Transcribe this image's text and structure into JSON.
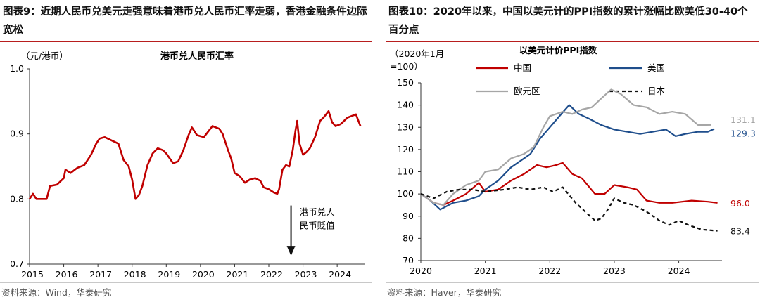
{
  "left": {
    "figure_title": "图表9：近期人民币兑美元走强意味着港币兑人民币汇率走弱，香港金融条件边际宽松",
    "source": "资料来源：Wind，华泰研究",
    "chart_data": {
      "type": "line",
      "title": "港币兑人民币汇率",
      "ylabel": "（元/港币）",
      "ylim": [
        0.7,
        1.0
      ],
      "yticks": [
        "0.7",
        "0.8",
        "0.9",
        "1.0"
      ],
      "xlim": [
        2015,
        2024.8
      ],
      "xticks": [
        "2015",
        "2016",
        "2017",
        "2018",
        "2019",
        "2020",
        "2021",
        "2022",
        "2023",
        "2024"
      ],
      "series": [
        {
          "color": "#c00000",
          "points": [
            [
              2015.0,
              0.8
            ],
            [
              2015.1,
              0.808
            ],
            [
              2015.2,
              0.8
            ],
            [
              2015.5,
              0.8
            ],
            [
              2015.6,
              0.82
            ],
            [
              2015.8,
              0.822
            ],
            [
              2016.0,
              0.832
            ],
            [
              2016.05,
              0.845
            ],
            [
              2016.2,
              0.84
            ],
            [
              2016.4,
              0.848
            ],
            [
              2016.6,
              0.852
            ],
            [
              2016.8,
              0.868
            ],
            [
              2016.95,
              0.885
            ],
            [
              2017.05,
              0.893
            ],
            [
              2017.2,
              0.895
            ],
            [
              2017.4,
              0.89
            ],
            [
              2017.6,
              0.885
            ],
            [
              2017.75,
              0.86
            ],
            [
              2017.9,
              0.85
            ],
            [
              2018.0,
              0.83
            ],
            [
              2018.1,
              0.8
            ],
            [
              2018.2,
              0.806
            ],
            [
              2018.3,
              0.82
            ],
            [
              2018.45,
              0.852
            ],
            [
              2018.6,
              0.87
            ],
            [
              2018.75,
              0.878
            ],
            [
              2018.9,
              0.875
            ],
            [
              2019.0,
              0.87
            ],
            [
              2019.2,
              0.855
            ],
            [
              2019.35,
              0.858
            ],
            [
              2019.5,
              0.875
            ],
            [
              2019.65,
              0.898
            ],
            [
              2019.75,
              0.91
            ],
            [
              2019.9,
              0.898
            ],
            [
              2020.1,
              0.895
            ],
            [
              2020.35,
              0.912
            ],
            [
              2020.55,
              0.908
            ],
            [
              2020.65,
              0.9
            ],
            [
              2020.8,
              0.876
            ],
            [
              2020.9,
              0.862
            ],
            [
              2021.0,
              0.84
            ],
            [
              2021.15,
              0.835
            ],
            [
              2021.3,
              0.825
            ],
            [
              2021.45,
              0.83
            ],
            [
              2021.6,
              0.832
            ],
            [
              2021.75,
              0.828
            ],
            [
              2021.85,
              0.818
            ],
            [
              2022.0,
              0.815
            ],
            [
              2022.15,
              0.81
            ],
            [
              2022.25,
              0.808
            ],
            [
              2022.3,
              0.815
            ],
            [
              2022.4,
              0.845
            ],
            [
              2022.5,
              0.852
            ],
            [
              2022.6,
              0.85
            ],
            [
              2022.7,
              0.875
            ],
            [
              2022.78,
              0.905
            ],
            [
              2022.83,
              0.92
            ],
            [
              2022.9,
              0.885
            ],
            [
              2023.0,
              0.868
            ],
            [
              2023.1,
              0.872
            ],
            [
              2023.2,
              0.878
            ],
            [
              2023.35,
              0.895
            ],
            [
              2023.5,
              0.92
            ],
            [
              2023.6,
              0.925
            ],
            [
              2023.75,
              0.935
            ],
            [
              2023.85,
              0.918
            ],
            [
              2023.95,
              0.912
            ],
            [
              2024.1,
              0.915
            ],
            [
              2024.3,
              0.925
            ],
            [
              2024.45,
              0.928
            ],
            [
              2024.55,
              0.93
            ],
            [
              2024.62,
              0.92
            ],
            [
              2024.68,
              0.912
            ]
          ]
        }
      ],
      "annotations": [
        {
          "text_lines": [
            "港币兑人",
            "民币贬值"
          ],
          "x": 2022.65,
          "y_top": 0.79,
          "y_bottom": 0.715
        }
      ]
    }
  },
  "right": {
    "figure_title": "图表10：2020年以来，中国以美元计的PPI指数的累计涨幅比欧美低30-40个百分点",
    "source": "资料来源：Haver，华泰研究",
    "chart_data": {
      "type": "line",
      "title": "以美元计价PPI指数",
      "ylabel_lines": [
        "（2020年1月",
        "=100）"
      ],
      "ylim": [
        70,
        150
      ],
      "yticks": [
        "70",
        "80",
        "90",
        "100",
        "110",
        "120",
        "130",
        "140",
        "150"
      ],
      "xlim": [
        2020,
        2024.67
      ],
      "xticks": [
        "2020",
        "2021",
        "2022",
        "2023",
        "2024"
      ],
      "series": [
        {
          "name": "中国",
          "color": "#c00000",
          "dash": "",
          "end_label": "96.0",
          "points": [
            [
              2020.0,
              100
            ],
            [
              2020.2,
              96
            ],
            [
              2020.35,
              95
            ],
            [
              2020.5,
              97
            ],
            [
              2020.7,
              100
            ],
            [
              2020.9,
              105
            ],
            [
              2021.0,
              101
            ],
            [
              2021.2,
              102
            ],
            [
              2021.4,
              106
            ],
            [
              2021.6,
              109
            ],
            [
              2021.8,
              113
            ],
            [
              2021.95,
              112
            ],
            [
              2022.1,
              113
            ],
            [
              2022.2,
              114
            ],
            [
              2022.35,
              109
            ],
            [
              2022.5,
              107
            ],
            [
              2022.7,
              100
            ],
            [
              2022.85,
              100
            ],
            [
              2023.0,
              104
            ],
            [
              2023.2,
              103
            ],
            [
              2023.35,
              102
            ],
            [
              2023.5,
              97
            ],
            [
              2023.7,
              96
            ],
            [
              2023.9,
              96
            ],
            [
              2024.2,
              97
            ],
            [
              2024.45,
              96.5
            ],
            [
              2024.6,
              96
            ]
          ]
        },
        {
          "name": "美国",
          "color": "#1f4e8c",
          "dash": "",
          "end_label": "129.3",
          "points": [
            [
              2020.0,
              100
            ],
            [
              2020.15,
              97
            ],
            [
              2020.3,
              93
            ],
            [
              2020.5,
              96
            ],
            [
              2020.7,
              97
            ],
            [
              2020.9,
              99
            ],
            [
              2021.0,
              102
            ],
            [
              2021.2,
              106
            ],
            [
              2021.4,
              112
            ],
            [
              2021.55,
              115
            ],
            [
              2021.7,
              118
            ],
            [
              2021.85,
              125
            ],
            [
              2022.0,
              130
            ],
            [
              2022.15,
              135
            ],
            [
              2022.3,
              140
            ],
            [
              2022.45,
              136
            ],
            [
              2022.6,
              134
            ],
            [
              2022.8,
              131
            ],
            [
              2023.0,
              129
            ],
            [
              2023.2,
              128
            ],
            [
              2023.4,
              127
            ],
            [
              2023.6,
              128
            ],
            [
              2023.8,
              129
            ],
            [
              2023.95,
              126
            ],
            [
              2024.1,
              127
            ],
            [
              2024.3,
              128
            ],
            [
              2024.45,
              128
            ],
            [
              2024.55,
              129.3
            ]
          ]
        },
        {
          "name": "欧元区",
          "color": "#a6a6a6",
          "dash": "",
          "end_label": "131.1",
          "points": [
            [
              2020.0,
              100
            ],
            [
              2020.2,
              96
            ],
            [
              2020.35,
              95
            ],
            [
              2020.5,
              100
            ],
            [
              2020.7,
              104
            ],
            [
              2020.9,
              106
            ],
            [
              2021.0,
              110
            ],
            [
              2021.2,
              111
            ],
            [
              2021.4,
              116
            ],
            [
              2021.6,
              118
            ],
            [
              2021.75,
              121
            ],
            [
              2021.9,
              130
            ],
            [
              2022.0,
              135
            ],
            [
              2022.2,
              137
            ],
            [
              2022.35,
              136
            ],
            [
              2022.5,
              138
            ],
            [
              2022.65,
              139
            ],
            [
              2022.8,
              143
            ],
            [
              2022.95,
              147
            ],
            [
              2023.1,
              145
            ],
            [
              2023.3,
              140
            ],
            [
              2023.5,
              139
            ],
            [
              2023.7,
              136
            ],
            [
              2023.9,
              137
            ],
            [
              2024.1,
              136
            ],
            [
              2024.3,
              131
            ],
            [
              2024.5,
              131.1
            ]
          ]
        },
        {
          "name": "日本",
          "color": "#111111",
          "dash": "5,4",
          "end_label": "83.4",
          "points": [
            [
              2020.0,
              100
            ],
            [
              2020.2,
              98
            ],
            [
              2020.4,
              101
            ],
            [
              2020.6,
              102
            ],
            [
              2020.8,
              102
            ],
            [
              2021.0,
              101
            ],
            [
              2021.3,
              102
            ],
            [
              2021.5,
              103
            ],
            [
              2021.7,
              102
            ],
            [
              2021.9,
              103
            ],
            [
              2022.05,
              101
            ],
            [
              2022.2,
              103
            ],
            [
              2022.4,
              96
            ],
            [
              2022.55,
              92
            ],
            [
              2022.7,
              88
            ],
            [
              2022.8,
              89
            ],
            [
              2022.9,
              93
            ],
            [
              2023.0,
              98
            ],
            [
              2023.15,
              96
            ],
            [
              2023.3,
              95
            ],
            [
              2023.5,
              92
            ],
            [
              2023.7,
              88
            ],
            [
              2023.85,
              86
            ],
            [
              2024.0,
              88
            ],
            [
              2024.15,
              86
            ],
            [
              2024.35,
              84
            ],
            [
              2024.6,
              83.4
            ]
          ]
        }
      ]
    }
  }
}
